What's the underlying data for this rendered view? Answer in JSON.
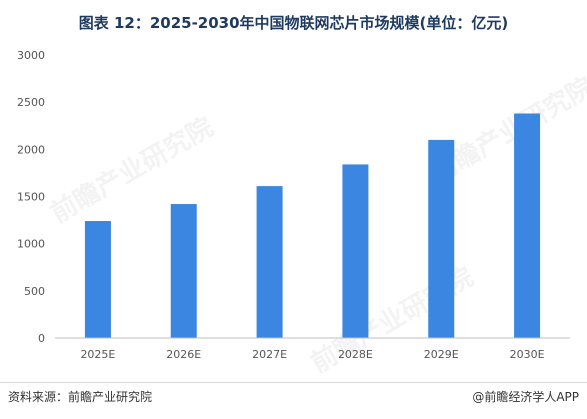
{
  "title": "图表 12：2025-2030年中国物联网芯片市场规模(单位：亿元)",
  "source": "资料来源：前瞻产业研究院",
  "brand": "@前瞻经济学人APP",
  "watermark": "前瞻产业研究院",
  "colors": {
    "bar": "#3b86e0",
    "axis": "#bfbfbf",
    "title": "#1f3a5f"
  },
  "chart_data": {
    "type": "bar",
    "title": "图表 12：2025-2030年中国物联网芯片市场规模(单位：亿元)",
    "categories": [
      "2025E",
      "2026E",
      "2027E",
      "2028E",
      "2029E",
      "2030E"
    ],
    "values": [
      1240,
      1420,
      1610,
      1840,
      2100,
      2380
    ],
    "xlabel": "",
    "ylabel": "",
    "ylim": [
      0,
      3000
    ],
    "yticks": [
      0,
      500,
      1000,
      1500,
      2000,
      2500,
      3000
    ],
    "grid": false,
    "legend": "none"
  }
}
